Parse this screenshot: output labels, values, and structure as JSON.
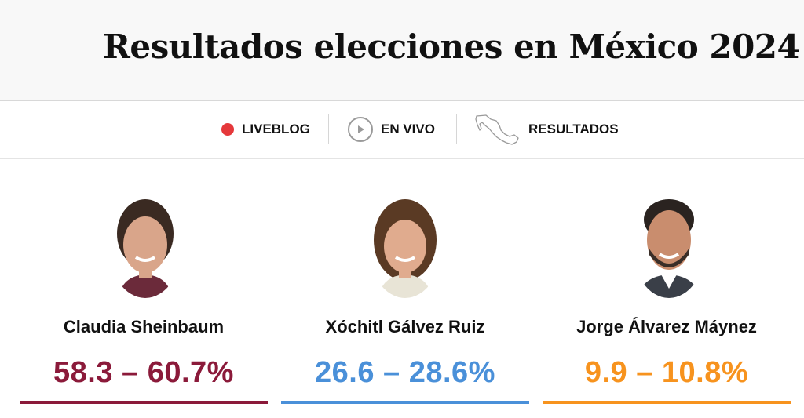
{
  "header": {
    "title": "Resultados elecciones en México 2024"
  },
  "nav": {
    "items": [
      {
        "label": "LIVEBLOG",
        "icon": "live-dot-icon"
      },
      {
        "label": "EN VIVO",
        "icon": "play-icon"
      },
      {
        "label": "RESULTADOS",
        "icon": "mexico-map-icon"
      }
    ]
  },
  "colors": {
    "live_dot": "#e5383b",
    "sheinbaum": "#8b1a3a",
    "galvez": "#4a90d9",
    "maynez": "#f7931e"
  },
  "candidates": [
    {
      "name": "Claudia Sheinbaum",
      "range": "58.3 – 60.7%",
      "color": "#8b1a3a"
    },
    {
      "name": "Xóchitl Gálvez Ruiz",
      "range": "26.6 – 28.6%",
      "color": "#4a90d9"
    },
    {
      "name": "Jorge Álvarez Máynez",
      "range": "9.9 – 10.8%",
      "color": "#f7931e"
    }
  ]
}
